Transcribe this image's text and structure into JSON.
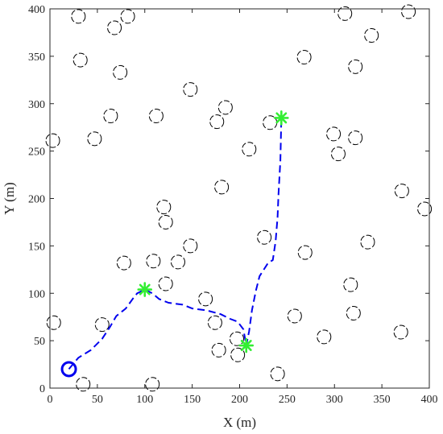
{
  "chart_data": {
    "type": "scatter",
    "title": "",
    "xlabel": "X (m)",
    "ylabel": "Y (m)",
    "xlim": [
      0,
      400
    ],
    "ylim": [
      0,
      400
    ],
    "xticks": [
      0,
      50,
      100,
      150,
      200,
      250,
      300,
      350,
      400
    ],
    "yticks": [
      0,
      50,
      100,
      150,
      200,
      250,
      300,
      350,
      400
    ],
    "grid": false,
    "legend": "none",
    "start_point": {
      "x": 20,
      "y": 20
    },
    "waypoints": [
      {
        "x": 100,
        "y": 104
      },
      {
        "x": 207,
        "y": 45
      },
      {
        "x": 244,
        "y": 285
      }
    ],
    "path": [
      [
        20,
        20
      ],
      [
        30,
        32
      ],
      [
        43,
        40
      ],
      [
        55,
        52
      ],
      [
        63,
        64
      ],
      [
        70,
        76
      ],
      [
        80,
        84
      ],
      [
        88,
        95
      ],
      [
        92,
        100
      ],
      [
        100,
        104
      ],
      [
        108,
        100
      ],
      [
        115,
        94
      ],
      [
        125,
        90
      ],
      [
        140,
        88
      ],
      [
        150,
        84
      ],
      [
        165,
        82
      ],
      [
        180,
        78
      ],
      [
        190,
        73
      ],
      [
        198,
        70
      ],
      [
        204,
        62
      ],
      [
        207,
        45
      ],
      [
        210,
        60
      ],
      [
        213,
        82
      ],
      [
        217,
        102
      ],
      [
        221,
        118
      ],
      [
        230,
        132
      ],
      [
        235,
        135
      ],
      [
        238,
        155
      ],
      [
        240,
        180
      ],
      [
        241,
        205
      ],
      [
        243,
        240
      ],
      [
        244,
        285
      ]
    ],
    "obstacles": [
      [
        30,
        392
      ],
      [
        68,
        380
      ],
      [
        82,
        392
      ],
      [
        32,
        346
      ],
      [
        74,
        333
      ],
      [
        3,
        261
      ],
      [
        47,
        263
      ],
      [
        64,
        287
      ],
      [
        112,
        287
      ],
      [
        148,
        315
      ],
      [
        176,
        281
      ],
      [
        185,
        296
      ],
      [
        181,
        212
      ],
      [
        210,
        252
      ],
      [
        232,
        280
      ],
      [
        268,
        349
      ],
      [
        322,
        339
      ],
      [
        311,
        395
      ],
      [
        339,
        372
      ],
      [
        378,
        397
      ],
      [
        299,
        268
      ],
      [
        304,
        247
      ],
      [
        322,
        264
      ],
      [
        371,
        208
      ],
      [
        395,
        189
      ],
      [
        120,
        191
      ],
      [
        122,
        175
      ],
      [
        148,
        150
      ],
      [
        78,
        132
      ],
      [
        109,
        134
      ],
      [
        135,
        133
      ],
      [
        122,
        110
      ],
      [
        164,
        94
      ],
      [
        174,
        69
      ],
      [
        178,
        40
      ],
      [
        197,
        52
      ],
      [
        198,
        35
      ],
      [
        226,
        159
      ],
      [
        269,
        143
      ],
      [
        317,
        109
      ],
      [
        335,
        154
      ],
      [
        258,
        76
      ],
      [
        320,
        79
      ],
      [
        289,
        54
      ],
      [
        370,
        59
      ],
      [
        240,
        15
      ],
      [
        55,
        67
      ],
      [
        4,
        69
      ],
      [
        35,
        4
      ],
      [
        108,
        4
      ]
    ],
    "colors": {
      "path": "#0000ee",
      "start": "#0000ee",
      "waypoint": "#33ee33",
      "obstacle": "#000000",
      "axis": "#262626"
    }
  }
}
